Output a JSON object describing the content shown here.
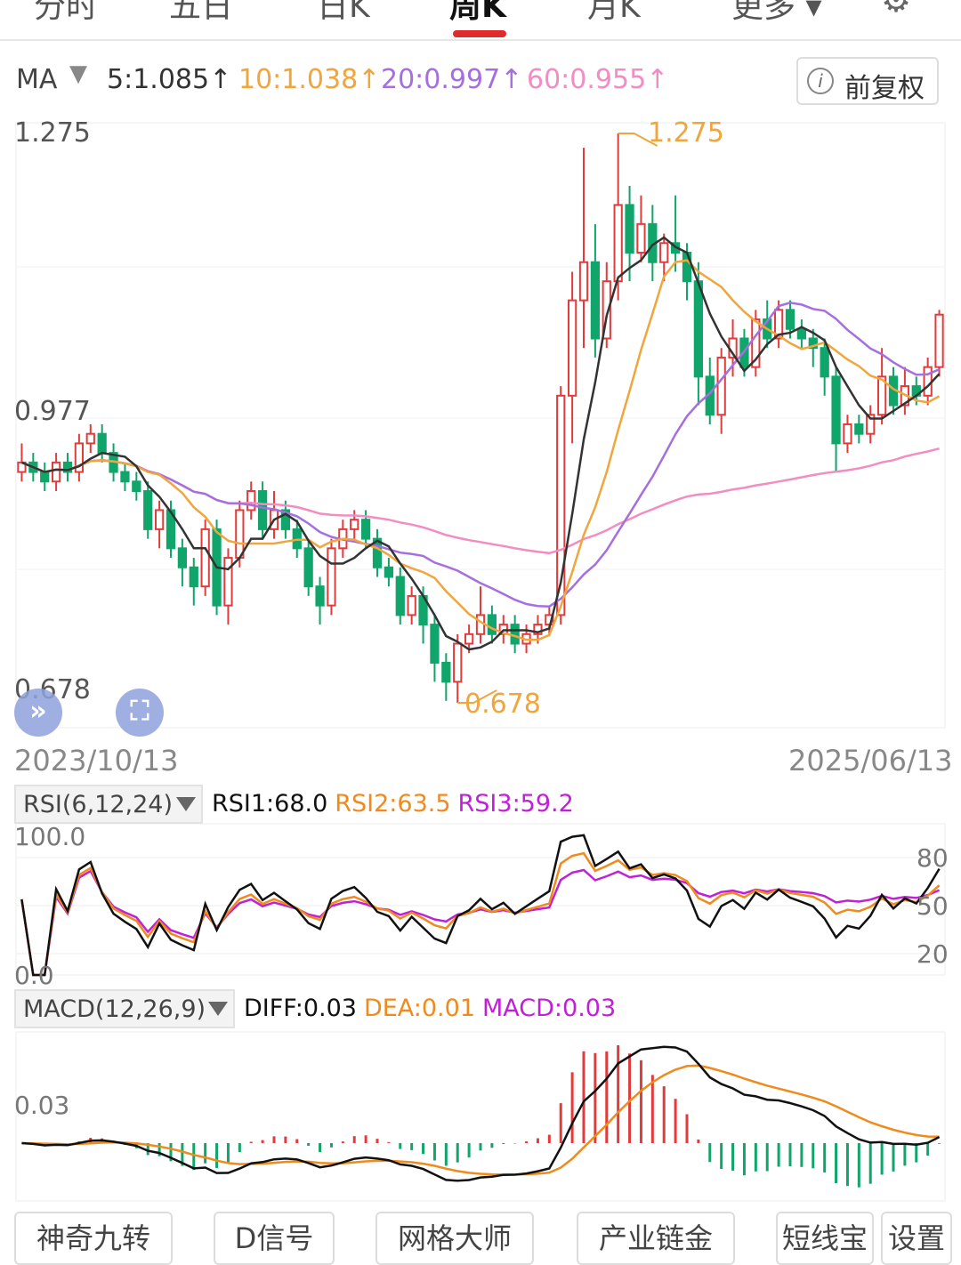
{
  "tabs": [
    {
      "label": "分时",
      "active": false
    },
    {
      "label": "五日",
      "active": false
    },
    {
      "label": "日K",
      "active": false
    },
    {
      "label": "周K",
      "active": true
    },
    {
      "label": "月K",
      "active": false
    },
    {
      "label": "更多 ▾",
      "active": false
    }
  ],
  "ma_bar": {
    "label": "MA",
    "ma5": "5:1.085↑",
    "ma10": "10:1.038↑",
    "ma20": "20:0.997↑",
    "ma60": "60:0.955↑",
    "adjust_button": "前复权",
    "adjust_icon": "i"
  },
  "price_axis": {
    "top": "1.275",
    "mid": "0.977",
    "bottom": "0.678"
  },
  "annotations": {
    "high": "1.275",
    "low": "0.678"
  },
  "dates": {
    "start": "2023/10/13",
    "end": "2025/06/13"
  },
  "rsi": {
    "selector": "RSI(6,12,24)",
    "rsi1": "RSI1:68.0",
    "rsi2": "RSI2:63.5",
    "rsi3": "RSI3:59.2",
    "axis_top": "100.0",
    "axis_bottom": "0.0",
    "levels": [
      "80",
      "50",
      "20"
    ]
  },
  "macd": {
    "selector": "MACD(12,26,9)",
    "diff": "DIFF:0.03",
    "dea": "DEA:0.01",
    "macd": "MACD:0.03",
    "axis_label": "0.03"
  },
  "bottom_buttons": [
    "神奇九转",
    "D信号",
    "网格大师",
    "产业链金",
    "短线宝",
    "设置"
  ],
  "colors": {
    "up": "#e23b3b",
    "down": "#10a56a",
    "ma5": "#333333",
    "ma10": "#f0a63c",
    "ma20": "#a56fe0",
    "ma60": "#f28dc3",
    "rsi1": "#111111",
    "rsi2": "#f08a1c",
    "rsi3": "#c020d6",
    "diff": "#111111",
    "dea": "#f08a1c",
    "macd_label": "#c020d6"
  },
  "chart_data": {
    "type": "candlestick",
    "frequency": "weekly",
    "ylim": [
      0.678,
      1.275
    ],
    "high": 1.275,
    "low": 0.678,
    "candles": [
      [
        0.92,
        0.93,
        0.95,
        0.91
      ],
      [
        0.93,
        0.92,
        0.94,
        0.91
      ],
      [
        0.92,
        0.91,
        0.93,
        0.9
      ],
      [
        0.91,
        0.93,
        0.94,
        0.9
      ],
      [
        0.93,
        0.92,
        0.94,
        0.91
      ],
      [
        0.92,
        0.95,
        0.96,
        0.91
      ],
      [
        0.95,
        0.96,
        0.97,
        0.94
      ],
      [
        0.96,
        0.94,
        0.97,
        0.93
      ],
      [
        0.94,
        0.92,
        0.95,
        0.91
      ],
      [
        0.92,
        0.91,
        0.93,
        0.9
      ],
      [
        0.91,
        0.9,
        0.92,
        0.89
      ],
      [
        0.9,
        0.86,
        0.91,
        0.85
      ],
      [
        0.86,
        0.88,
        0.89,
        0.84
      ],
      [
        0.88,
        0.84,
        0.89,
        0.83
      ],
      [
        0.84,
        0.82,
        0.85,
        0.8
      ],
      [
        0.82,
        0.8,
        0.83,
        0.78
      ],
      [
        0.8,
        0.86,
        0.87,
        0.79
      ],
      [
        0.86,
        0.78,
        0.87,
        0.77
      ],
      [
        0.78,
        0.83,
        0.84,
        0.76
      ],
      [
        0.83,
        0.88,
        0.89,
        0.82
      ],
      [
        0.88,
        0.9,
        0.91,
        0.87
      ],
      [
        0.9,
        0.86,
        0.91,
        0.85
      ],
      [
        0.86,
        0.88,
        0.9,
        0.85
      ],
      [
        0.88,
        0.86,
        0.89,
        0.85
      ],
      [
        0.86,
        0.84,
        0.87,
        0.83
      ],
      [
        0.84,
        0.8,
        0.85,
        0.79
      ],
      [
        0.8,
        0.78,
        0.81,
        0.76
      ],
      [
        0.78,
        0.84,
        0.85,
        0.77
      ],
      [
        0.84,
        0.86,
        0.87,
        0.83
      ],
      [
        0.86,
        0.87,
        0.88,
        0.85
      ],
      [
        0.87,
        0.85,
        0.88,
        0.84
      ],
      [
        0.85,
        0.82,
        0.86,
        0.81
      ],
      [
        0.82,
        0.81,
        0.83,
        0.8
      ],
      [
        0.81,
        0.77,
        0.82,
        0.76
      ],
      [
        0.77,
        0.79,
        0.8,
        0.76
      ],
      [
        0.79,
        0.76,
        0.8,
        0.74
      ],
      [
        0.76,
        0.72,
        0.77,
        0.7
      ],
      [
        0.72,
        0.7,
        0.73,
        0.68
      ],
      [
        0.7,
        0.74,
        0.75,
        0.678
      ],
      [
        0.74,
        0.75,
        0.76,
        0.73
      ],
      [
        0.75,
        0.77,
        0.8,
        0.74
      ],
      [
        0.77,
        0.75,
        0.78,
        0.74
      ],
      [
        0.75,
        0.76,
        0.77,
        0.74
      ],
      [
        0.76,
        0.74,
        0.77,
        0.73
      ],
      [
        0.74,
        0.75,
        0.76,
        0.73
      ],
      [
        0.75,
        0.76,
        0.77,
        0.74
      ],
      [
        0.76,
        0.77,
        0.78,
        0.75
      ],
      [
        0.77,
        1.0,
        1.01,
        0.76
      ],
      [
        1.0,
        1.1,
        1.13,
        0.95
      ],
      [
        1.1,
        1.14,
        1.26,
        1.05
      ],
      [
        1.14,
        1.06,
        1.18,
        1.04
      ],
      [
        1.06,
        1.12,
        1.14,
        1.05
      ],
      [
        1.12,
        1.2,
        1.275,
        1.1
      ],
      [
        1.2,
        1.15,
        1.22,
        1.12
      ],
      [
        1.15,
        1.18,
        1.21,
        1.14
      ],
      [
        1.18,
        1.14,
        1.2,
        1.12
      ],
      [
        1.14,
        1.16,
        1.17,
        1.12
      ],
      [
        1.16,
        1.15,
        1.21,
        1.13
      ],
      [
        1.15,
        1.12,
        1.16,
        1.1
      ],
      [
        1.12,
        1.02,
        1.14,
        0.99
      ],
      [
        1.02,
        0.98,
        1.04,
        0.97
      ],
      [
        0.98,
        1.04,
        1.05,
        0.96
      ],
      [
        1.04,
        1.06,
        1.08,
        1.02
      ],
      [
        1.06,
        1.03,
        1.07,
        1.02
      ],
      [
        1.03,
        1.08,
        1.09,
        1.02
      ],
      [
        1.08,
        1.06,
        1.1,
        1.05
      ],
      [
        1.06,
        1.09,
        1.1,
        1.05
      ],
      [
        1.09,
        1.07,
        1.1,
        1.06
      ],
      [
        1.07,
        1.06,
        1.08,
        1.05
      ],
      [
        1.06,
        1.05,
        1.07,
        1.03
      ],
      [
        1.05,
        1.02,
        1.06,
        1.0
      ],
      [
        1.02,
        0.95,
        1.03,
        0.92
      ],
      [
        0.95,
        0.97,
        0.98,
        0.94
      ],
      [
        0.97,
        0.96,
        0.98,
        0.95
      ],
      [
        0.96,
        0.98,
        0.99,
        0.95
      ],
      [
        0.98,
        1.02,
        1.05,
        0.97
      ],
      [
        1.02,
        0.99,
        1.03,
        0.98
      ],
      [
        0.99,
        1.01,
        1.03,
        0.98
      ],
      [
        1.01,
        1.0,
        1.02,
        0.99
      ],
      [
        1.0,
        1.03,
        1.04,
        0.99
      ],
      [
        1.03,
        1.085,
        1.09,
        1.02
      ]
    ],
    "ma": {
      "ma5": 1.085,
      "ma10": 1.038,
      "ma20": 0.997,
      "ma60": 0.955
    },
    "rsi": {
      "rsi1": 68.0,
      "rsi2": 63.5,
      "rsi3": 59.2,
      "ylim": [
        0,
        100
      ]
    },
    "macd_values": {
      "diff": 0.03,
      "dea": 0.01,
      "macd": 0.03
    }
  }
}
